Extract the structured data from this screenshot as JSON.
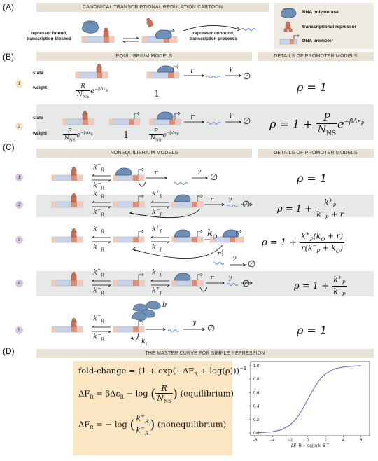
{
  "panels": {
    "a": "(A)",
    "b": "(B)",
    "c": "(C)",
    "d": "(D)"
  },
  "banners": {
    "cartoon": "CANONICAL TRANSCRIPTIONAL REGULATION CARTOON",
    "eq_models": "EQUILIBRIUM MODELS",
    "details_b": "DETAILS OF PROMOTER MODELS",
    "neq_models": "NONEQUILIBRIUM MODELS",
    "details_c": "DETAILS OF PROMOTER MODELS",
    "master": "THE MASTER CURVE FOR SIMPLE REPRESSION"
  },
  "legend": {
    "rnap": "RNA polymerase",
    "repressor": "transcriptional repressor",
    "promoter": "DNA promoter"
  },
  "cartoon": {
    "bound_line1": "repressor bound,",
    "bound_line2": "transcription blocked",
    "unbound_line1": "repressor unbound,",
    "unbound_line2": "transcription proceeds"
  },
  "eq": {
    "state_word": "state",
    "weight_word": "weight",
    "row_nums": [
      "1",
      "2"
    ],
    "rho1": "ρ = 1",
    "one": "1",
    "r": "r",
    "gamma": "γ",
    "empty": "∅",
    "weight_R_num": "R",
    "weight_N_den": "N",
    "weight_NS_sub": "NS",
    "weight_exp_R": "e",
    "weight_exp_R_sup": "−βΔε",
    "weight_exp_R_subsub": "R",
    "weight_P_num": "P",
    "weight_exp_P_subsub": "P",
    "rho2_lhs": "ρ = 1 +",
    "rho2_num": "P",
    "rho2_den": "N",
    "rho2_den_sub": "NS",
    "rho2_exp": "e",
    "rho2_exp_sup": "−βΔε",
    "rho2_exp_subsub": "P"
  },
  "neq": {
    "row_nums": [
      "1",
      "2",
      "3",
      "4",
      "5"
    ],
    "kRp": "k",
    "kRp_sup": "+",
    "kRp_sub": "R",
    "kRm": "k",
    "kRm_sup": "−",
    "kRm_sub": "R",
    "kPp_sub": "P",
    "kO": "k",
    "kO_sub": "O",
    "ki": "k",
    "ki_sub": "i",
    "b": "b",
    "r": "r",
    "gamma": "γ",
    "empty": "∅",
    "rho1": "ρ = 1",
    "rho_prefix": "ρ = 1 +",
    "rho2_num": "k",
    "rho2_den_tail": "+ r",
    "rho3_num_tail": "(k",
    "rho3_num_tail2": "+ r)",
    "rho3_den_head": "r(k",
    "rho3_den_tail": "+ k",
    "rho5": "ρ = 1"
  },
  "master": {
    "line1": "fold-change = (1 + exp(−ΔF",
    "line1_sub": "R",
    "line1_tail": " + log(ρ)))",
    "line1_sup": "−1",
    "line2_head": "ΔF",
    "line2_sub": "R",
    "line2_mid": " = βΔε",
    "line2_sub2": "R",
    "line2_log": " − log",
    "line2_num": "R",
    "line2_den": "N",
    "line2_den_sub": "NS",
    "line2_tag": "(equilibrium)",
    "line3_head": "ΔF",
    "line3_sub": "R",
    "line3_mid": " = − log",
    "line3_num": "k",
    "line3_num_sup": "+",
    "line3_num_sub": "R",
    "line3_den": "k",
    "line3_den_sup": "−",
    "line3_den_sub": "R",
    "line3_tag": "(nonequilibrium)"
  },
  "chart_data": {
    "type": "line",
    "title": "",
    "xlabel": "ΔF_R − log(ρ) k_B T",
    "ylabel": "fold-change",
    "xlim": [
      -6,
      6.5
    ],
    "ylim": [
      0,
      1.02
    ],
    "xticks": [
      -6,
      -4,
      -2,
      0,
      2,
      4,
      6
    ],
    "yticks": [
      0.0,
      0.2,
      0.4,
      0.6,
      0.8,
      1.0
    ],
    "xtick_labels": [
      "−6",
      "−4",
      "−2",
      "0",
      "2",
      "4",
      "6"
    ],
    "ytick_labels": [
      "0.0",
      "0.2",
      "0.4",
      "0.6",
      "0.8",
      "1.0"
    ],
    "series": [
      {
        "x": [
          -6,
          -5,
          -4,
          -3,
          -2,
          -1.5,
          -1,
          -0.5,
          0,
          0.5,
          1,
          1.5,
          2,
          3,
          4,
          5,
          6
        ],
        "y": [
          0.002,
          0.007,
          0.018,
          0.047,
          0.119,
          0.182,
          0.269,
          0.378,
          0.5,
          0.622,
          0.731,
          0.818,
          0.881,
          0.953,
          0.982,
          0.993,
          0.998
        ]
      }
    ],
    "line_color": "#6677cc",
    "grid": false
  },
  "colors": {
    "banner": "#e7e1d6",
    "row_shade": "#e7e9e9",
    "eq_circle": "#f7e3bf",
    "neq_circle": "#d7c7e3",
    "promoter_blue": "#c9d4ea",
    "promoter_pink": "#f2c9b6",
    "operator_red": "#d98e76",
    "repressor": "#c8705a",
    "rnap": "#6e8fb8",
    "mrna": "#6a97d9",
    "math_box": "#fbe6c3"
  }
}
